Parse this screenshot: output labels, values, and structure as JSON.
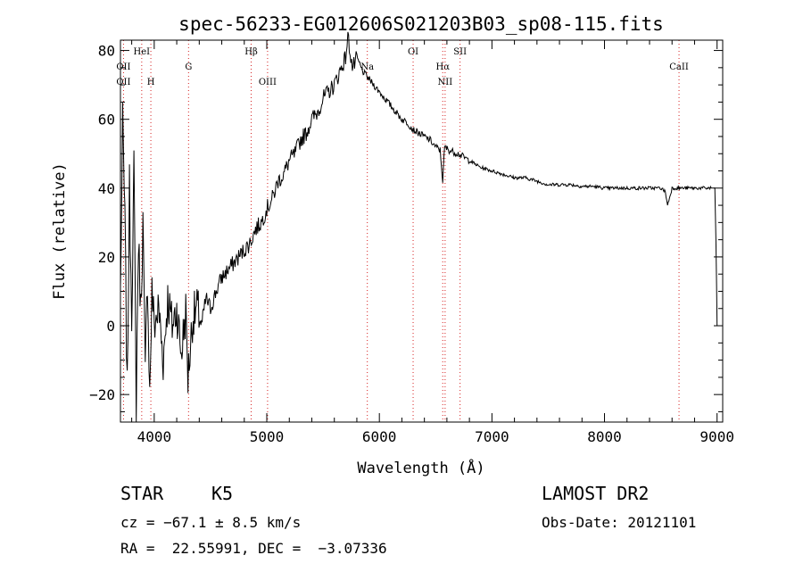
{
  "chart_data": {
    "type": "line",
    "title": "spec-56233-EG012606S021203B03_sp08-115.fits",
    "xlabel": "Wavelength (Å)",
    "ylabel": "Flux (relative)",
    "xlim": [
      3700,
      9050
    ],
    "ylim": [
      -28,
      83
    ],
    "xticks": [
      4000,
      5000,
      6000,
      7000,
      8000,
      9000
    ],
    "xtick_labels": [
      "4000",
      "5000",
      "6000",
      "7000",
      "8000",
      "9000"
    ],
    "yticks": [
      -20,
      0,
      20,
      40,
      60,
      80
    ],
    "ytick_labels": [
      "−20",
      "0",
      "20",
      "40",
      "60",
      "80"
    ],
    "grid": false,
    "series": [
      {
        "x": [
          3700,
          3720,
          3740,
          3760,
          3780,
          3800,
          3820,
          3840,
          3860,
          3880,
          3900,
          3920,
          3940,
          3960,
          3980,
          4000,
          4040,
          4080,
          4120,
          4160,
          4200,
          4240,
          4280,
          4300,
          4340,
          4380,
          4420,
          4460,
          4500,
          4550,
          4600,
          4650,
          4700,
          4750,
          4800,
          4850,
          4900,
          4950,
          5000,
          5050,
          5100,
          5150,
          5200,
          5250,
          5300,
          5350,
          5400,
          5450,
          5500,
          5550,
          5600,
          5650,
          5700,
          5720,
          5740,
          5760,
          5780,
          5800,
          5850,
          5900,
          5950,
          6000,
          6050,
          6100,
          6150,
          6200,
          6250,
          6300,
          6350,
          6400,
          6450,
          6500,
          6540,
          6563,
          6580,
          6620,
          6700,
          6750,
          6800,
          6900,
          7000,
          7100,
          7200,
          7300,
          7400,
          7500,
          7600,
          7700,
          7800,
          7900,
          8000,
          8100,
          8200,
          8300,
          8400,
          8500,
          8540,
          8560,
          8600,
          8700,
          8800,
          8900,
          8960,
          8980,
          8990,
          9000
        ],
        "y": [
          10,
          58,
          30,
          -20,
          40,
          5,
          45,
          -22,
          25,
          5,
          30,
          -15,
          15,
          -20,
          10,
          0,
          5,
          -10,
          8,
          0,
          5,
          -8,
          4,
          -15,
          2,
          5,
          0,
          8,
          5,
          10,
          14,
          16,
          18,
          20,
          22,
          24,
          28,
          30,
          34,
          37,
          42,
          44,
          48,
          50,
          54,
          56,
          60,
          62,
          66,
          68,
          70,
          74,
          78,
          84,
          80,
          75,
          76,
          78,
          74,
          72,
          70,
          68,
          66,
          64,
          62,
          60,
          59,
          57,
          56,
          55,
          54,
          52,
          51,
          42,
          52,
          51,
          50,
          49,
          48,
          46,
          45,
          44,
          43,
          43,
          42,
          41,
          41,
          41,
          40.5,
          40.5,
          40,
          40,
          40,
          40,
          40,
          40,
          39,
          35,
          40,
          40,
          40,
          40,
          40,
          40,
          25,
          0
        ]
      }
    ],
    "lines": [
      {
        "name": "OII",
        "wavelength": 3727
      },
      {
        "name": "HeI",
        "wavelength": 3889
      },
      {
        "name": "H",
        "wavelength": 3970
      },
      {
        "name": "G",
        "wavelength": 4305
      },
      {
        "name": "Hβ",
        "wavelength": 4861
      },
      {
        "name": "OIII",
        "wavelength": 5007
      },
      {
        "name": "Na",
        "wavelength": 5893
      },
      {
        "name": "OI",
        "wavelength": 6300
      },
      {
        "name": "Hα",
        "wavelength": 6563
      },
      {
        "name": "NII",
        "wavelength": 6584
      },
      {
        "name": "SII",
        "wavelength": 6717
      },
      {
        "name": "CaII",
        "wavelength": 8662
      }
    ]
  },
  "info": {
    "class_label": "STAR",
    "subclass": "K5",
    "survey": "LAMOST DR2",
    "velocity": "cz = −67.1 ± 8.5 km/s",
    "obs_date": "Obs-Date: 20121101",
    "coords": "RA =  22.55991, DEC =  −3.07336"
  }
}
